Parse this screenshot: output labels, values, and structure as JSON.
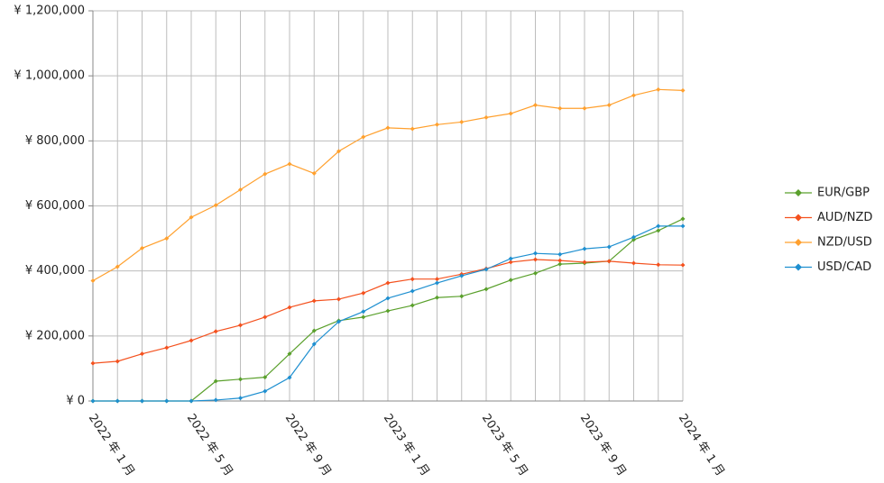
{
  "chart_data": {
    "type": "line",
    "categories": [
      "2022 年 1 月",
      null,
      null,
      null,
      "2022 年 5 月",
      null,
      null,
      null,
      "2022 年 9 月",
      null,
      null,
      null,
      "2023 年 1 月",
      null,
      null,
      null,
      "2023 年 5 月",
      null,
      null,
      null,
      "2023 年 9 月",
      null,
      null,
      null,
      "2024 年 1 月"
    ],
    "series": [
      {
        "name": "EUR/GBP",
        "color": "#5aa02c",
        "values": [
          0,
          0,
          0,
          0,
          0,
          61000,
          67000,
          73000,
          145000,
          216000,
          247000,
          258000,
          277000,
          294000,
          318000,
          322000,
          344000,
          372000,
          393000,
          421000,
          424000,
          430000,
          496000,
          524000,
          560000
        ]
      },
      {
        "name": "AUD/NZD",
        "color": "#f4511e",
        "values": [
          116000,
          122000,
          145000,
          164000,
          186000,
          214000,
          233000,
          258000,
          288000,
          308000,
          313000,
          332000,
          363000,
          375000,
          375000,
          390000,
          407000,
          427000,
          435000,
          432000,
          427000,
          430000,
          424000,
          419000,
          418000
        ]
      },
      {
        "name": "NZD/USD",
        "color": "#ffa02e",
        "values": [
          370000,
          413000,
          470000,
          500000,
          565000,
          602000,
          650000,
          698000,
          729000,
          700000,
          768000,
          812000,
          840000,
          837000,
          850000,
          858000,
          872000,
          884000,
          910000,
          900000,
          900000,
          910000,
          940000,
          958000,
          955000
        ]
      },
      {
        "name": "USD/CAD",
        "color": "#1e8fd0",
        "values": [
          0,
          0,
          0,
          0,
          0,
          3000,
          9000,
          30000,
          72000,
          175000,
          244000,
          275000,
          316000,
          338000,
          363000,
          385000,
          405000,
          438000,
          454000,
          451000,
          468000,
          474000,
          504000,
          538000,
          538000
        ]
      }
    ],
    "ylim": [
      0,
      1200000
    ],
    "yticks": [
      {
        "value": 0,
        "label": "¥ 0"
      },
      {
        "value": 200000,
        "label": "¥ 200,000"
      },
      {
        "value": 400000,
        "label": "¥ 400,000"
      },
      {
        "value": 600000,
        "label": "¥ 600,000"
      },
      {
        "value": 800000,
        "label": "¥ 800,000"
      },
      {
        "value": 1000000,
        "label": "¥ 1,000,000"
      },
      {
        "value": 1200000,
        "label": "¥ 1,200,000"
      }
    ],
    "grid": true,
    "legend": "right"
  }
}
